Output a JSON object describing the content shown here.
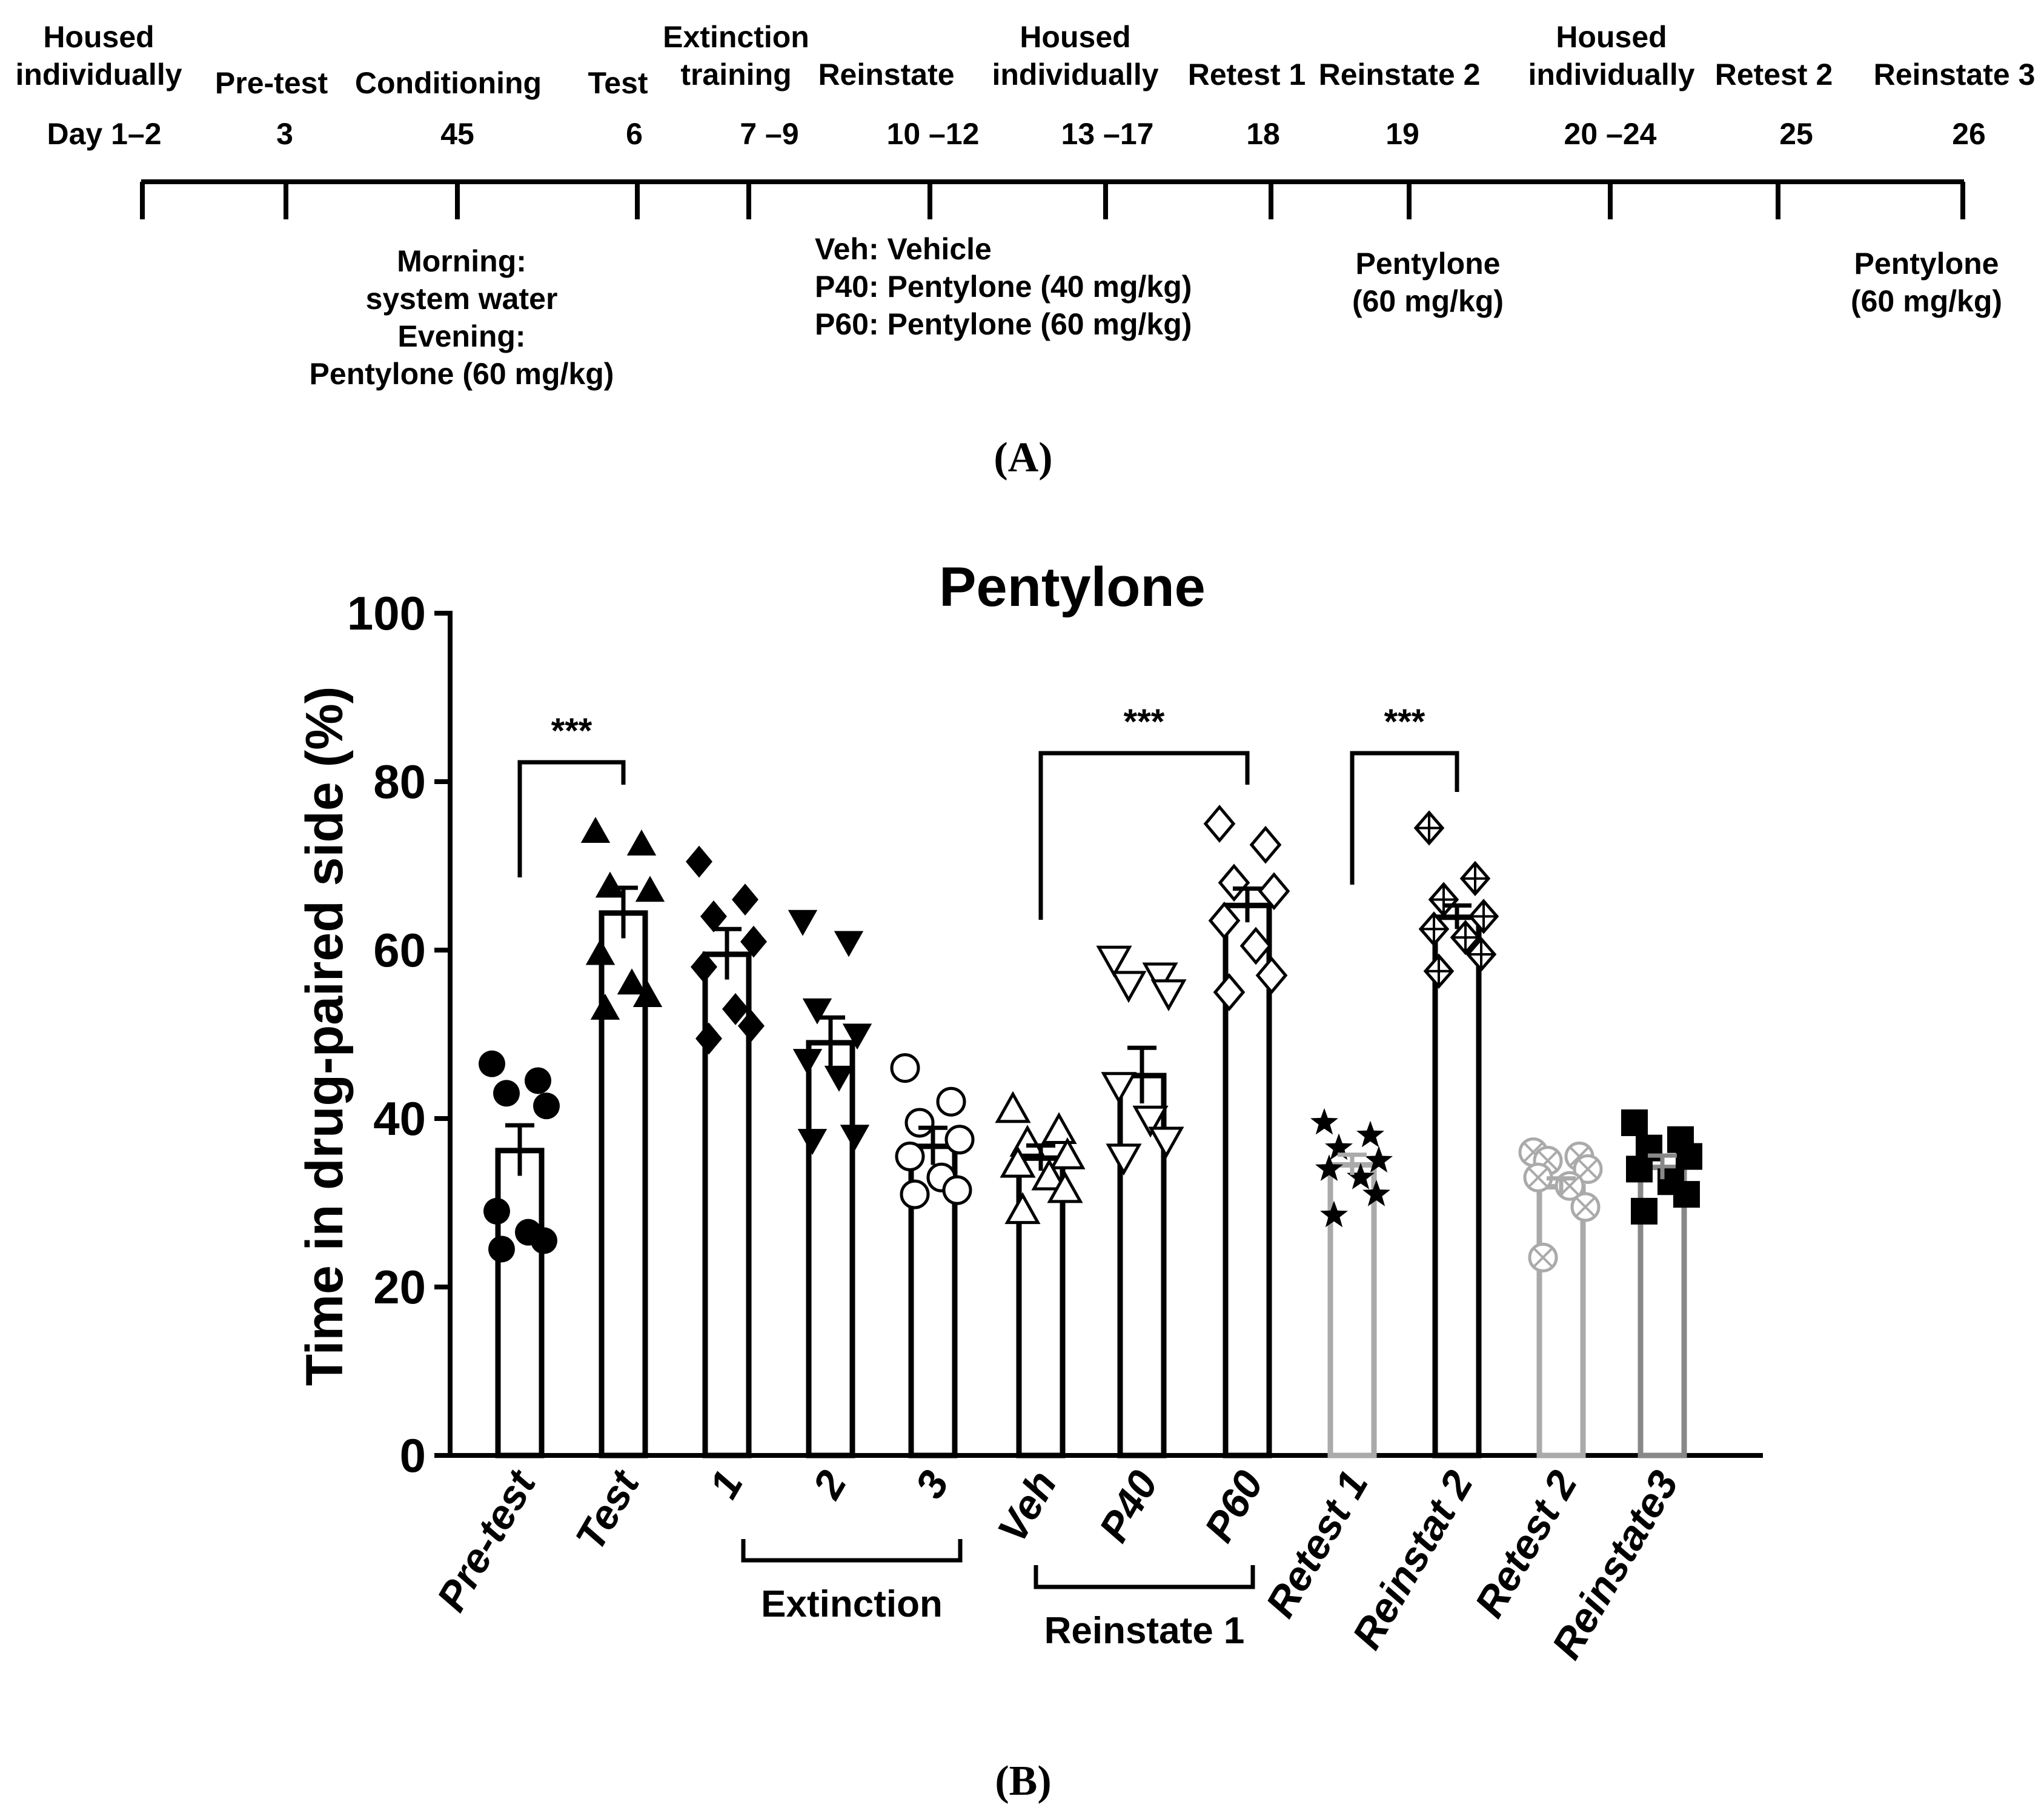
{
  "panel_a": {
    "label": "(A)",
    "events": [
      {
        "title": [
          "Housed",
          "individually"
        ],
        "day": "Day 1–2",
        "below": []
      },
      {
        "title": [
          "Pre-test"
        ],
        "day": "3",
        "below": []
      },
      {
        "title": [
          "Conditioning"
        ],
        "day": "45",
        "below": [
          "Morning:",
          "system water",
          "Evening:",
          "Pentylone (60 mg/kg)"
        ]
      },
      {
        "title": [
          "Test"
        ],
        "day": "6",
        "below": []
      },
      {
        "title": [
          "Extinction",
          "training"
        ],
        "day": "7 –9",
        "below": []
      },
      {
        "title": [
          "Reinstate"
        ],
        "day": "10 –12",
        "below": [
          "Veh: Vehicle",
          "P40: Pentylone (40 mg/kg)",
          "P60: Pentylone (60 mg/kg)"
        ]
      },
      {
        "title": [
          "Housed",
          "individually"
        ],
        "day": "13 –17",
        "below": []
      },
      {
        "title": [
          "Retest 1"
        ],
        "day": "18",
        "below": []
      },
      {
        "title": [
          "Reinstate 2"
        ],
        "day": "19",
        "below": [
          "Pentylone",
          "(60 mg/kg)"
        ]
      },
      {
        "title": [
          "Housed",
          "individually"
        ],
        "day": "20 –24",
        "below": []
      },
      {
        "title": [
          "Retest 2"
        ],
        "day": "25",
        "below": []
      },
      {
        "title": [
          "Reinstate 3"
        ],
        "day": "26",
        "below": [
          "Pentylone",
          "(60 mg/kg)"
        ]
      }
    ]
  },
  "panel_b": {
    "label": "(B)"
  },
  "chart_data": {
    "type": "bar",
    "title": "Pentylone",
    "ylabel": "Time in drug-paired side (%)",
    "xlabel": "",
    "ylim": [
      0,
      100
    ],
    "yticks": [
      0,
      20,
      40,
      60,
      80,
      100
    ],
    "categories": [
      "Pre-test",
      "Test",
      "1",
      "2",
      "3",
      "Veh",
      "P40",
      "P60",
      "Retest 1",
      "Reinstat 2",
      "Retest 2",
      "Reinstate3"
    ],
    "values": [
      36.2,
      64.4,
      59.5,
      49.0,
      36.7,
      35.3,
      45.1,
      65.3,
      34.5,
      63.9,
      31.9,
      34.2
    ],
    "sem": [
      3.0,
      3.0,
      3.0,
      3.0,
      2.2,
      1.5,
      3.3,
      2.0,
      1.2,
      1.4,
      1.0,
      1.4
    ],
    "bar_colors": [
      "#000000",
      "#000000",
      "#000000",
      "#000000",
      "#000000",
      "#000000",
      "#000000",
      "#000000",
      "#aaaaaa",
      "#000000",
      "#aaaaaa",
      "#888888"
    ],
    "markers": [
      "circle-filled",
      "triangle-up-filled",
      "diamond-filled",
      "triangle-down-filled",
      "circle-open",
      "triangle-up-open",
      "triangle-down-open",
      "diamond-open",
      "star-filled",
      "diamond-plus",
      "circle-x-gray",
      "square-filled"
    ],
    "points": [
      [
        46.5,
        44.5,
        43.0,
        41.5,
        29.0,
        26.5,
        25.5,
        24.5
      ],
      [
        74.0,
        72.5,
        67.5,
        67.0,
        59.5,
        56.0,
        54.5,
        53.0
      ],
      [
        70.5,
        66.0,
        64.0,
        61.0,
        58.0,
        53.0,
        51.0,
        49.5
      ],
      [
        63.5,
        61.0,
        53.0,
        50.0,
        47.0,
        45.0,
        38.0,
        37.5
      ],
      [
        46.0,
        42.0,
        39.5,
        37.5,
        35.5,
        33.0,
        31.5,
        31.0
      ],
      [
        41.0,
        38.5,
        37.0,
        35.5,
        34.5,
        33.0,
        31.5,
        29.0
      ],
      [
        59.0,
        57.0,
        56.0,
        55.0,
        44.0,
        40.0,
        37.5,
        35.5
      ],
      [
        75.0,
        72.5,
        68.0,
        67.0,
        63.5,
        60.5,
        57.0,
        55.0
      ],
      [
        39.5,
        38.0,
        36.5,
        35.0,
        34.0,
        33.0,
        31.0,
        28.5
      ],
      [
        74.5,
        68.5,
        66.0,
        64.0,
        62.5,
        61.5,
        59.5,
        57.5
      ],
      [
        36.0,
        35.5,
        35.0,
        34.0,
        33.0,
        32.0,
        29.5,
        23.5
      ],
      [
        39.5,
        37.5,
        36.5,
        35.5,
        34.0,
        32.5,
        31.0,
        29.0
      ]
    ],
    "significance": [
      {
        "from": 0,
        "to": 1,
        "label": "***",
        "y": 83
      },
      {
        "from": 5,
        "to": 7,
        "label": "***",
        "y": 83
      },
      {
        "from": 8,
        "to": 9,
        "label": "***",
        "y": 83
      }
    ],
    "groups": [
      {
        "label": "Extinction",
        "from": 2,
        "to": 4
      },
      {
        "label": "Reinstate 1",
        "from": 5,
        "to": 7
      }
    ]
  }
}
